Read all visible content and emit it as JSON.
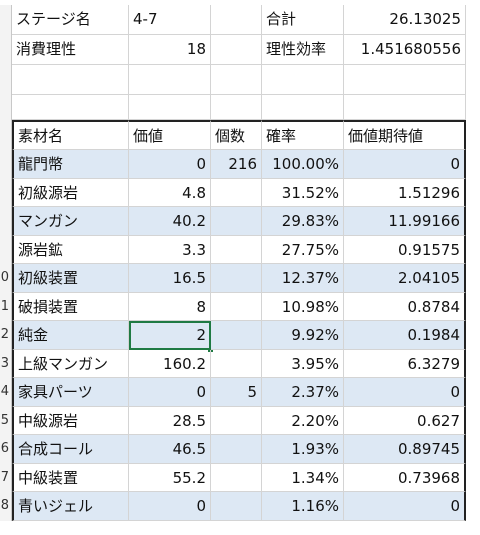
{
  "summary": {
    "stage_label": "ステージ名",
    "stage_value": "4-7",
    "total_label": "合計",
    "total_value": "26.13025",
    "sanity_label": "消費理性",
    "sanity_value": "18",
    "efficiency_label": "理性効率",
    "efficiency_value": "1.451680556"
  },
  "table": {
    "headers": [
      "素材名",
      "価値",
      "個数",
      "確率",
      "価値期待値"
    ],
    "rows": [
      {
        "rownum": "",
        "name": "龍門幣",
        "value": "0",
        "count": "216",
        "prob": "100.00%",
        "expected": "0"
      },
      {
        "rownum": "",
        "name": "初級源岩",
        "value": "4.8",
        "count": "",
        "prob": "31.52%",
        "expected": "1.51296"
      },
      {
        "rownum": "",
        "name": "マンガン",
        "value": "40.2",
        "count": "",
        "prob": "29.83%",
        "expected": "11.99166"
      },
      {
        "rownum": "",
        "name": "源岩鉱",
        "value": "3.3",
        "count": "",
        "prob": "27.75%",
        "expected": "0.91575"
      },
      {
        "rownum": "0",
        "name": "初級装置",
        "value": "16.5",
        "count": "",
        "prob": "12.37%",
        "expected": "2.04105"
      },
      {
        "rownum": "1",
        "name": "破損装置",
        "value": "8",
        "count": "",
        "prob": "10.98%",
        "expected": "0.8784"
      },
      {
        "rownum": "2",
        "name": "純金",
        "value": "2",
        "count": "",
        "prob": "9.92%",
        "expected": "0.1984"
      },
      {
        "rownum": "3",
        "name": "上級マンガン",
        "value": "160.2",
        "count": "",
        "prob": "3.95%",
        "expected": "6.3279"
      },
      {
        "rownum": "4",
        "name": "家具パーツ",
        "value": "0",
        "count": "5",
        "prob": "2.37%",
        "expected": "0"
      },
      {
        "rownum": "5",
        "name": "中級源岩",
        "value": "28.5",
        "count": "",
        "prob": "2.20%",
        "expected": "0.627"
      },
      {
        "rownum": "6",
        "name": "合成コール",
        "value": "46.5",
        "count": "",
        "prob": "1.93%",
        "expected": "0.89745"
      },
      {
        "rownum": "7",
        "name": "中級装置",
        "value": "55.2",
        "count": "",
        "prob": "1.34%",
        "expected": "0.73968"
      },
      {
        "rownum": "8",
        "name": "青いジェル",
        "value": "0",
        "count": "",
        "prob": "1.16%",
        "expected": "0"
      }
    ]
  },
  "colors": {
    "stripe": "#dde8f4",
    "selection": "#1f7a43",
    "gridline": "#d4d4d4"
  }
}
